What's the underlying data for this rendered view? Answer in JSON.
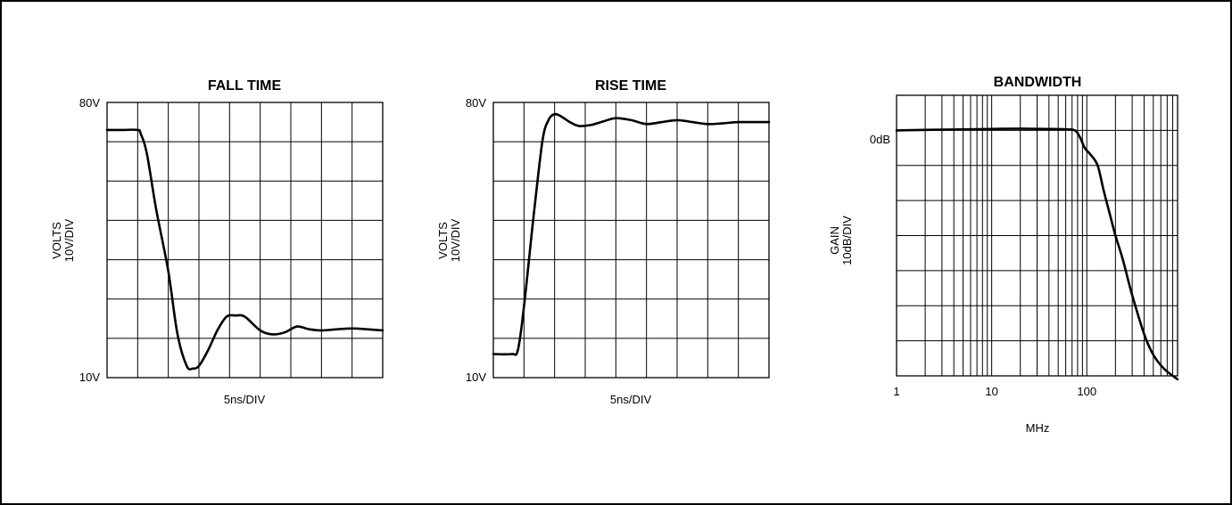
{
  "chart_data": [
    {
      "type": "line",
      "title": "FALL TIME",
      "xlabel": "5ns/DIV",
      "ylabel_line1": "VOLTS",
      "ylabel_line2": "10V/DIV",
      "ylim": [
        10,
        80
      ],
      "y_tick_labels": {
        "top": "80V",
        "bottom": "10V"
      },
      "x_divisions": 9,
      "y_divisions": 7,
      "grid": true,
      "series": [
        {
          "x": [
            0,
            0.5,
            1.0,
            1.1,
            1.3,
            1.6,
            2.0,
            2.3,
            2.6,
            2.8,
            3.0,
            3.3,
            3.6,
            3.9,
            4.2,
            4.5,
            5.0,
            5.4,
            5.8,
            6.2,
            6.6,
            7.0,
            7.5,
            8.0,
            8.5,
            9.0
          ],
          "y": [
            73,
            73,
            73,
            72,
            67,
            53,
            37,
            21,
            13,
            12.3,
            13,
            17,
            22,
            25.5,
            25.8,
            25.5,
            22,
            21,
            21.5,
            23,
            22.3,
            22,
            22.3,
            22.5,
            22.3,
            22
          ]
        }
      ]
    },
    {
      "type": "line",
      "title": "RISE TIME",
      "xlabel": "5ns/DIV",
      "ylabel_line1": "VOLTS",
      "ylabel_line2": "10V/DIV",
      "ylim": [
        10,
        80
      ],
      "y_tick_labels": {
        "top": "80V",
        "bottom": "10V"
      },
      "x_divisions": 9,
      "y_divisions": 7,
      "grid": true,
      "series": [
        {
          "x": [
            0,
            0.6,
            0.8,
            1.0,
            1.3,
            1.6,
            1.8,
            2.0,
            2.2,
            2.5,
            2.8,
            3.2,
            3.6,
            4.0,
            4.5,
            5.0,
            5.5,
            6.0,
            6.5,
            7.0,
            7.5,
            8.0,
            8.5,
            9.0
          ],
          "y": [
            16,
            16,
            17,
            28,
            50,
            70,
            75.5,
            77,
            76.5,
            75,
            74,
            74.3,
            75.2,
            76,
            75.5,
            74.5,
            75,
            75.5,
            75,
            74.5,
            74.7,
            75,
            75,
            75
          ]
        }
      ]
    },
    {
      "type": "line",
      "title": "BANDWIDTH",
      "xlabel": "MHz",
      "ylabel_line1": "GAIN",
      "ylabel_line2": "10dB/DIV",
      "x_scale": "log",
      "xlim": [
        1,
        900
      ],
      "x_tick_labels": [
        "1",
        "10",
        "100"
      ],
      "x_tick_values": [
        1,
        10,
        100
      ],
      "y_ref_label": "0dB",
      "ylim": [
        -70,
        10
      ],
      "y_divisions": 8,
      "grid": true,
      "series": [
        {
          "x": [
            1,
            3,
            10,
            20,
            40,
            60,
            75,
            85,
            95,
            110,
            130,
            150,
            175,
            200,
            240,
            300,
            400,
            500,
            650,
            900
          ],
          "y": [
            0,
            0.2,
            0.4,
            0.5,
            0.4,
            0.3,
            0,
            -2,
            -5,
            -7,
            -10,
            -17,
            -24,
            -30,
            -37,
            -47,
            -58,
            -64,
            -68,
            -71
          ]
        }
      ]
    }
  ]
}
